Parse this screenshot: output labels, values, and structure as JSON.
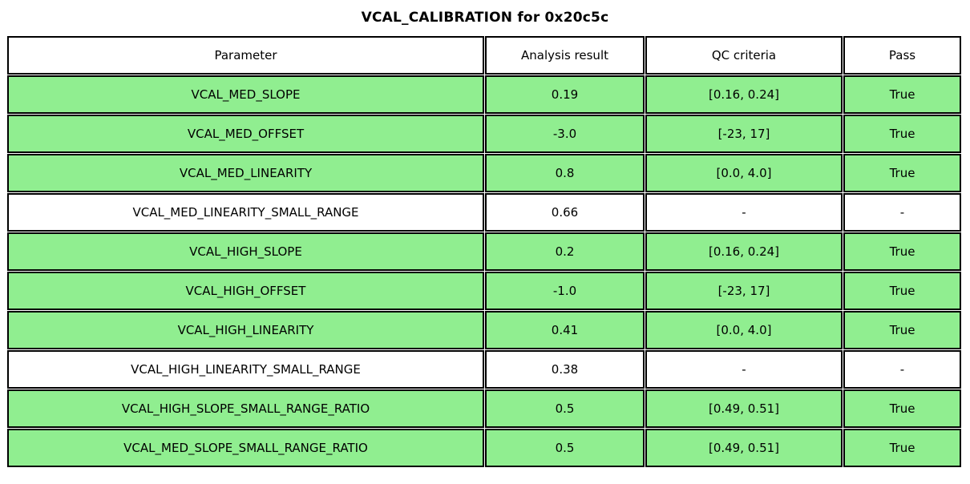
{
  "chart_data": {
    "type": "table",
    "title": "VCAL_CALIBRATION for 0x20c5c",
    "columns": [
      "Parameter",
      "Analysis result",
      "QC criteria",
      "Pass"
    ],
    "rows": [
      {
        "parameter": "VCAL_MED_SLOPE",
        "analysis_result": "0.19",
        "qc_criteria": "[0.16, 0.24]",
        "pass": "True",
        "state": "pass"
      },
      {
        "parameter": "VCAL_MED_OFFSET",
        "analysis_result": "-3.0",
        "qc_criteria": "[-23, 17]",
        "pass": "True",
        "state": "pass"
      },
      {
        "parameter": "VCAL_MED_LINEARITY",
        "analysis_result": "0.8",
        "qc_criteria": "[0.0, 4.0]",
        "pass": "True",
        "state": "pass"
      },
      {
        "parameter": "VCAL_MED_LINEARITY_SMALL_RANGE",
        "analysis_result": "0.66",
        "qc_criteria": "-",
        "pass": "-",
        "state": "none"
      },
      {
        "parameter": "VCAL_HIGH_SLOPE",
        "analysis_result": "0.2",
        "qc_criteria": "[0.16, 0.24]",
        "pass": "True",
        "state": "pass"
      },
      {
        "parameter": "VCAL_HIGH_OFFSET",
        "analysis_result": "-1.0",
        "qc_criteria": "[-23, 17]",
        "pass": "True",
        "state": "pass"
      },
      {
        "parameter": "VCAL_HIGH_LINEARITY",
        "analysis_result": "0.41",
        "qc_criteria": "[0.0, 4.0]",
        "pass": "True",
        "state": "pass"
      },
      {
        "parameter": "VCAL_HIGH_LINEARITY_SMALL_RANGE",
        "analysis_result": "0.38",
        "qc_criteria": "-",
        "pass": "-",
        "state": "none"
      },
      {
        "parameter": "VCAL_HIGH_SLOPE_SMALL_RANGE_RATIO",
        "analysis_result": "0.5",
        "qc_criteria": "[0.49, 0.51]",
        "pass": "True",
        "state": "pass"
      },
      {
        "parameter": "VCAL_MED_SLOPE_SMALL_RANGE_RATIO",
        "analysis_result": "0.5",
        "qc_criteria": "[0.49, 0.51]",
        "pass": "True",
        "state": "pass"
      }
    ],
    "colors": {
      "pass_row_background": "#90ee90",
      "no_qc_row_background": "#ffffff",
      "border": "#000000",
      "text": "#000000"
    },
    "layout": {
      "title_bold": true,
      "cells_centered": true,
      "grid": "double black cell borders"
    }
  }
}
